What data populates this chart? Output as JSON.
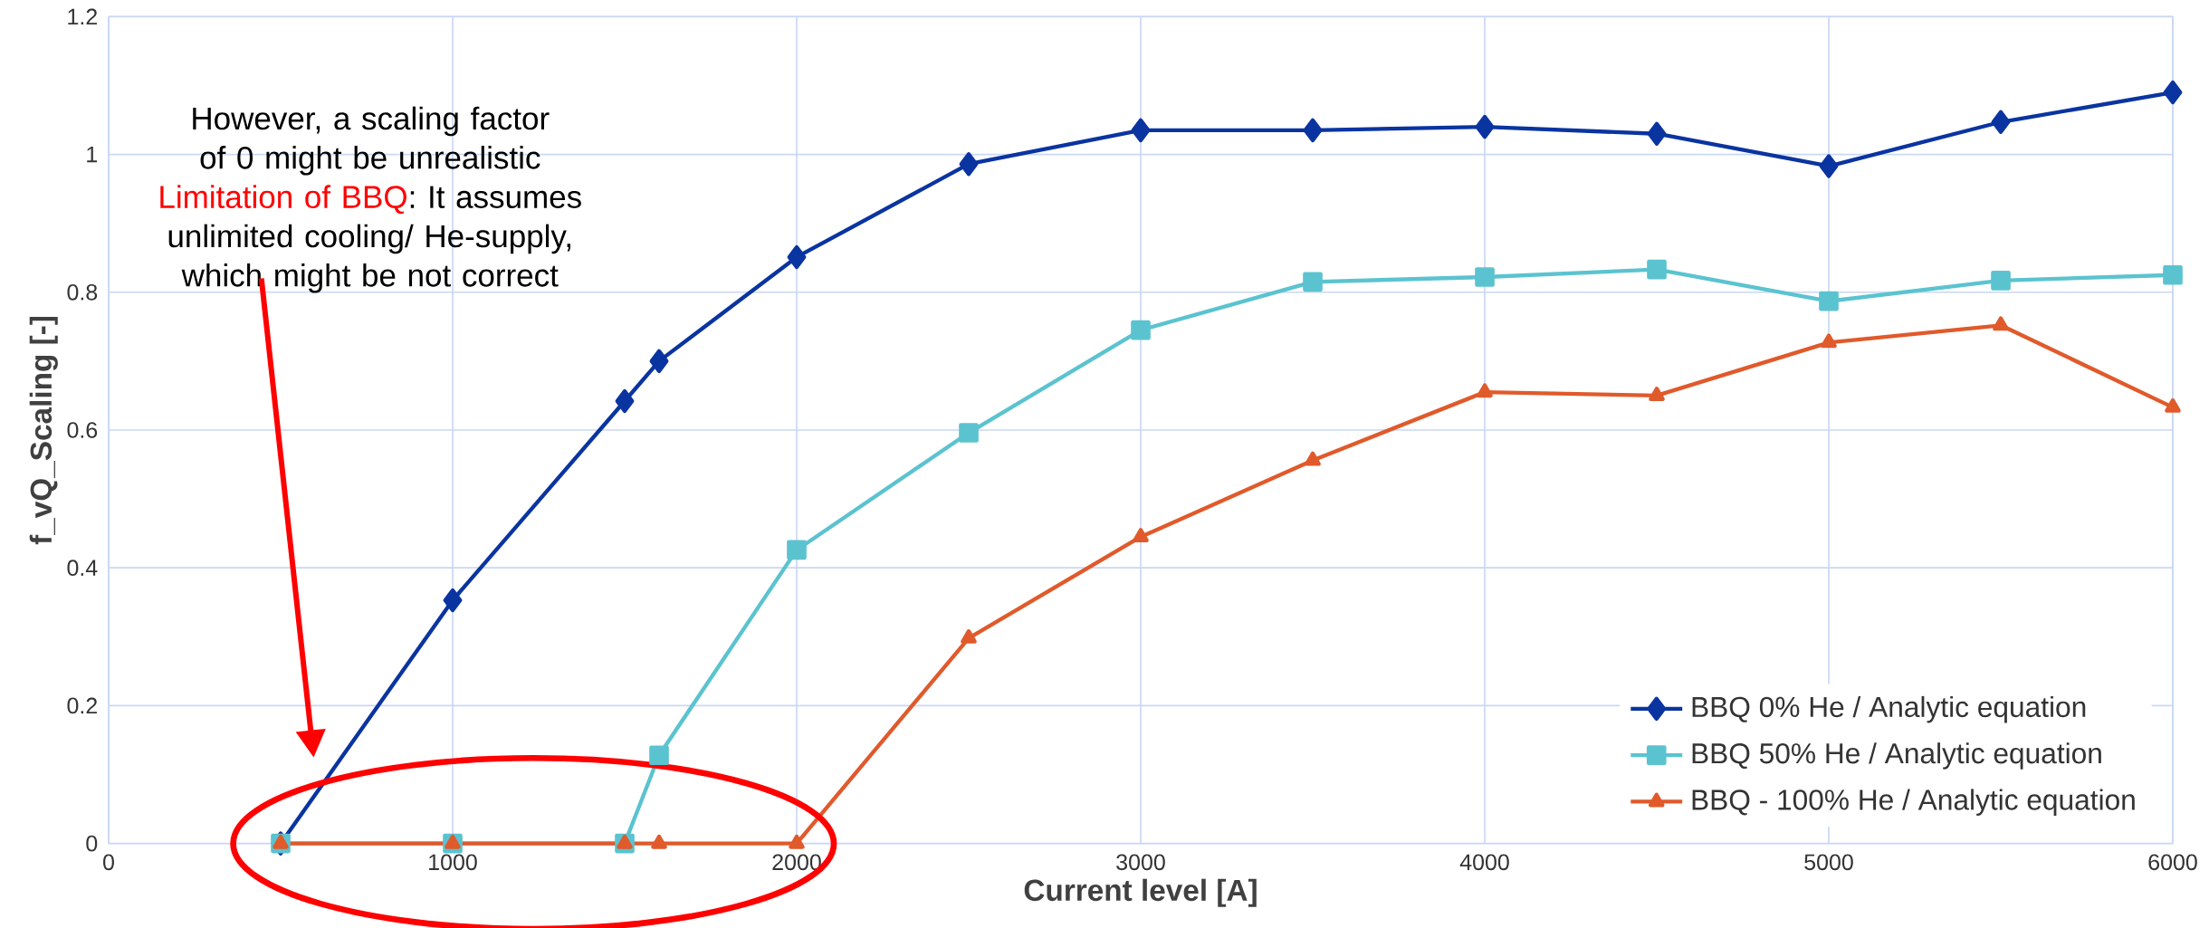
{
  "chart_data": {
    "type": "line",
    "xlabel": "Current level [A]",
    "ylabel": "f_vQ_Scaling [-]",
    "x": [
      500,
      1000,
      1500,
      1600,
      2000,
      2500,
      3000,
      3500,
      4000,
      4500,
      5000,
      5500,
      6000
    ],
    "series": [
      {
        "name": "BBQ 0% He / Analytic equation",
        "color": "#0a34a0",
        "marker": "diamond",
        "values": [
          0,
          0.353,
          0.642,
          0.7,
          0.851,
          0.986,
          1.035,
          1.035,
          1.04,
          1.03,
          0.983,
          1.047,
          1.09
        ]
      },
      {
        "name": "BBQ 50% He / Analytic equation",
        "color": "#5bc3d0",
        "marker": "square",
        "values": [
          0,
          0,
          0,
          0.128,
          0.426,
          0.596,
          0.745,
          0.815,
          0.822,
          0.833,
          0.787,
          0.817,
          0.825
        ]
      },
      {
        "name": "BBQ - 100% He / Analytic equation",
        "color": "#e05a2b",
        "marker": "triangle",
        "values": [
          0,
          0,
          0,
          0,
          0,
          0.298,
          0.445,
          0.556,
          0.655,
          0.65,
          0.727,
          0.752,
          0.633
        ]
      }
    ],
    "xlim": [
      0,
      6000
    ],
    "ylim": [
      0,
      1.2
    ],
    "xticks": [
      0,
      1000,
      2000,
      3000,
      4000,
      5000,
      6000
    ],
    "yticks": [
      0,
      0.2,
      0.4,
      0.6,
      0.8,
      1,
      1.2
    ],
    "grid": true,
    "legend": "bottom right",
    "line_style": "solid",
    "annotations": [
      "However, a scaling factor of 0 might be unrealistic",
      "Limitation of BBQ",
      ": It assumes unlimited cooling/ He-supply, which might be not correct"
    ]
  }
}
